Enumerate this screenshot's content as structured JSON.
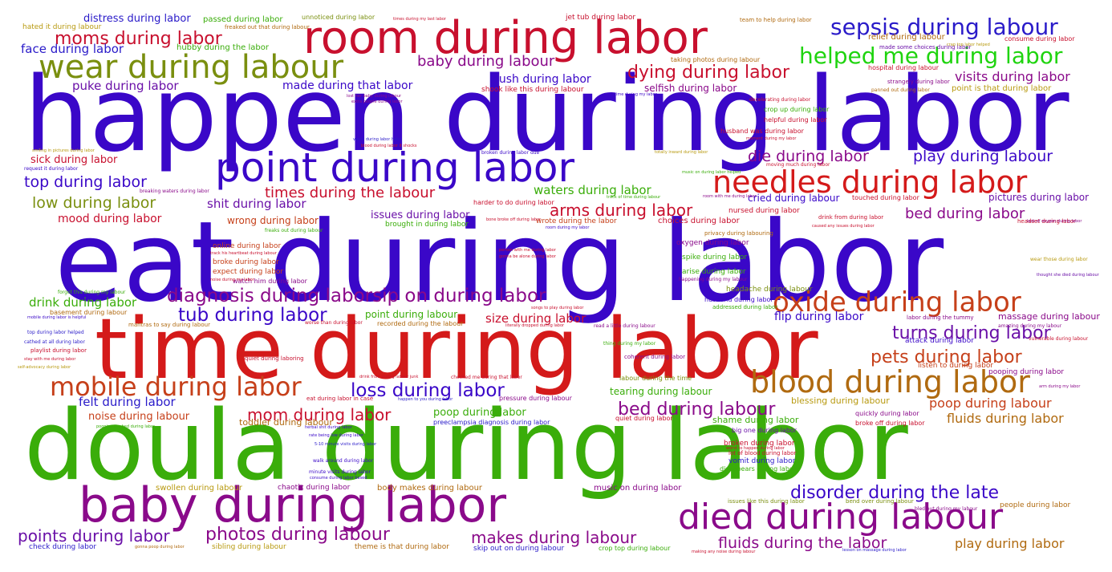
{
  "words": {
    "w1": "happen during labor",
    "w2": "eat during labor",
    "w3": "time during labor",
    "w4": "doula during labor",
    "w5": "room during labor",
    "w6": "baby during labor",
    "w7": "point during labor",
    "w8": "wear during labour",
    "w9": "died during labour",
    "w10": "needles during labor",
    "w11": "blood during labor",
    "w12": "oxide during labor",
    "w13": "mobile during labor",
    "w14": "helped me during labor",
    "w15": "sepsis during labour",
    "w16": "dying during labor",
    "w17": "diagnosis during laborsip on during labor",
    "w18": "moms during labor",
    "w19": "photos during labour",
    "w20": "points during labor",
    "w21": "disorder during the late",
    "w22": "fluids during the labor",
    "w23": "makes during labour",
    "w24": "tub during labor",
    "w25": "loss during labor",
    "w26": "mom during labor",
    "w27": "bed during labour",
    "w28": "pets during labor",
    "w29": "turns during labor",
    "w30": "times during the labour",
    "w31": "top during labor",
    "w32": "low during labor",
    "w33": "die during labor",
    "w34": "play during labour",
    "w35": "arms during labor",
    "w36": "baby during labour",
    "w37": "poop during labour",
    "w38": "fluids during labor",
    "w39": "play during labor",
    "w40": "visits during labor",
    "w41": "bed during labor",
    "w42": "face during labor",
    "w43": "distress during labor",
    "w44": "push during labor",
    "w45": "puke during labor",
    "w46": "made during that labor",
    "w47": "shit during labor",
    "w48": "waters during labor",
    "w49": "drink during labor",
    "w50": "felt during labor",
    "w51": "size during labor",
    "w52": "mood during labor",
    "w53": "issues during labor",
    "w54": "sick during labor",
    "w55": "noise during labour",
    "w56": "flip during labor",
    "w57": "selfish during labor",
    "w58": "wrong during labor",
    "w59": "poop during labor",
    "w60": "cried during labour",
    "w61": "pictures during labor",
    "w62": "swollen during labour",
    "w63": "music on during labor",
    "w64": "tearing during labour",
    "w65": "blessing during labour",
    "w66": "point during labour",
    "w67": "shame during labor",
    "w68": "toddler during labour",
    "w69": "massage during labour",
    "w70": "chaotic during labor",
    "w71": "body makes during labour",
    "w72": "check during labor",
    "w73": "sibling during labour",
    "w74": "theme is that during labor",
    "w75": "skip out on during labour",
    "w76": "crop top during labour",
    "w77": "people during labor",
    "w78": "hated it during labour",
    "w79": "passed during labor",
    "w80": "hubby during the labor",
    "w81": "unnoticed during labor",
    "w82": "freaked out that during labour",
    "w83": "jet tub during labor",
    "w84": "team to help during labor",
    "w85": "relief during labour",
    "w86": "consume during labor",
    "w87": "hospital during labour",
    "w88": "strangely during labor",
    "w89": "point is that during labor",
    "w90": "taking photos during labour",
    "w91": "shook like this during labour",
    "w92": "online during labor",
    "w93": "broke during labor",
    "w94": "expect during labor",
    "w95": "watch him during labor",
    "w96": "oxygen during labor",
    "w97": "spike during labor",
    "w98": "arise during labor",
    "w99": "headache during labour",
    "w100": "husband during labor",
    "w101": "nursed during labor",
    "w102": "choices during labor",
    "w103": "wrote during the labor",
    "w104": "brought in during labor",
    "w105": "harder to do during labor",
    "w106": "privacy during labouring",
    "w107": "attack during labor",
    "w108": "listen to during labor",
    "w109": "pooping during labor",
    "w110": "quickly during labor",
    "w111": "broke off during labor",
    "w112": "big one during labor",
    "w113": "broken during labor",
    "w114": "vomit during labor",
    "w115": "disappears during labour",
    "w116": "quiet during labor",
    "w117": "preeclampsia diagnosis during labor",
    "w118": "coherent during labor",
    "w119": "labour during the time",
    "w120": "pressure during labour",
    "w121": "eat during labor in case",
    "w122": "recorded during the labour",
    "w123": "basement during labour",
    "w124": "playlist during labor",
    "w125": "crop up during labor",
    "w126": "helpful during labor",
    "w127": "husband was during labor",
    "w128": "decelerating during labor",
    "w129": "panned out during labor",
    "w130": "made some choices during labor",
    "w131": "issues like this during labor",
    "w132": "bend over during labour",
    "w133": "bled out during my labour",
    "w134": "moving much during labor",
    "w135": "touched during labor",
    "w136": "drink from during labor",
    "w137": "headset during labor",
    "w138": "quiet during laboring",
    "w139": "minute visits during labor",
    "w140": "walk around during labor",
    "w141": "broken during labor due",
    "w142": "request it during labor",
    "w143": "breaking waters during labor",
    "w144": "freaks out during labour",
    "w145": "forgot this during my labour",
    "w146": "thing during my labor",
    "w147": "read a little during labour",
    "w148": "amazing during my labour",
    "w149": "vulnerable during labour",
    "w150": "wear those during labor",
    "w151": "thought she died during labour",
    "w152": "labor during the tummy",
    "w153": "songs to play during labor",
    "w154": "happening during my labour",
    "w155": "addressed during labor",
    "w156": "mantras to say during labour",
    "w157": "worse than during labor",
    "w158": "top during labor helped",
    "w159": "cathed at all during labor",
    "w160": "stay with me during labor",
    "w161": "self-advocacy during labor",
    "w162": "herbal shit during labor",
    "w163": "rate being low during labor",
    "w164": "happen to you during labor",
    "w165": "consume during labor based",
    "w166": "worst to happen during labor",
    "w167": "lot of blood during labor",
    "w168": "gonna poop during labor",
    "w169": "making any noise during labour",
    "w170": "lesson on massage during labor",
    "w171": "pooping the bed during labor",
    "w172": "5-10 minute visits during labor",
    "w173": "drink from during labour junk",
    "w174": "checked me during that labor",
    "w175": "arm during my labor",
    "w176": "smiling in pictures during labor",
    "w177": "vomit during labor haha",
    "w178": "blood during labor it shocks",
    "w179": "totally inward during labor",
    "w180": "lost her baby during labour",
    "w181": "extra people during labor",
    "w182": "time during my labor",
    "w183": "noise during my labor",
    "w184": "track his heartbeat during labour",
    "w185": "person with me during labor",
    "w186": "gonna be alone during labor",
    "w187": "room during my labor",
    "w188": "track of time during labour",
    "w189": "room with me during labor",
    "w190": "music on during labor helped",
    "w191": "caused any issues during labor",
    "w192": "lack of oxygen during labor",
    "w193": "mobile during labor is helpful",
    "w194": "times during my last labor",
    "w195": "crap top labor helped",
    "w196": "moment during my labor",
    "w197": "bone broke off during labor",
    "w198": "literally dropped during labor"
  },
  "colors": {
    "purple": "#8a0a8a",
    "blue": "#2a1bc9",
    "indigo": "#3a07c8",
    "red": "#d41a1a",
    "crimson": "#c8102e",
    "orange": "#c6401a",
    "olive": "#7a8f0f",
    "green": "#3aad0a",
    "lime": "#1fd40f",
    "brown": "#b06a10",
    "gold": "#b89a10",
    "violet": "#6a10a8"
  }
}
